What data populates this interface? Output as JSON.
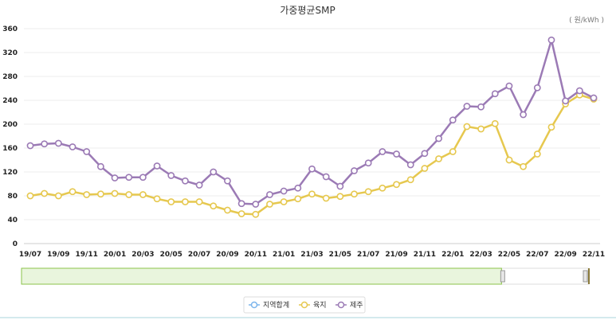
{
  "chart_data": {
    "type": "line",
    "title": "가중평균SMP",
    "unit_label": "( 원/kWh )",
    "ylim": [
      0,
      360
    ],
    "yticks": [
      "0",
      "40",
      "80",
      "120",
      "160",
      "200",
      "240",
      "280",
      "320",
      "360"
    ],
    "x": [
      "19/07",
      "19/08",
      "19/09",
      "19/10",
      "19/11",
      "19/12",
      "20/01",
      "20/02",
      "20/03",
      "20/04",
      "20/05",
      "20/06",
      "20/07",
      "20/08",
      "20/09",
      "20/10",
      "20/11",
      "20/12",
      "21/01",
      "21/02",
      "21/03",
      "21/04",
      "21/05",
      "21/06",
      "21/07",
      "21/08",
      "21/09",
      "21/10",
      "21/11",
      "21/12",
      "22/01",
      "22/02",
      "22/03",
      "22/04",
      "22/05",
      "22/06",
      "22/07",
      "22/08",
      "22/09",
      "22/10",
      "22/11"
    ],
    "x_tick_labels": [
      "19/07",
      "19/09",
      "19/11",
      "20/01",
      "20/03",
      "20/05",
      "20/07",
      "20/09",
      "20/11",
      "21/01",
      "21/03",
      "21/05",
      "21/07",
      "21/09",
      "21/11",
      "22/01",
      "22/03",
      "22/05",
      "22/07",
      "22/09",
      "22/11"
    ],
    "grid": true,
    "legend_position": "bottom",
    "series": [
      {
        "name": "지역합계",
        "color": "#7cb5ec",
        "values": [
          82,
          85,
          81,
          88,
          83,
          84,
          84,
          83,
          83,
          76,
          71,
          71,
          71,
          64,
          57,
          51,
          50,
          67,
          71,
          76,
          84,
          77,
          80,
          84,
          88,
          94,
          100,
          108,
          127,
          143,
          155,
          197,
          193,
          202,
          142,
          130,
          152,
          196,
          236,
          251,
          243
        ]
      },
      {
        "name": "육지",
        "color": "#e6c84f",
        "values": [
          80,
          84,
          80,
          87,
          82,
          83,
          84,
          82,
          82,
          75,
          70,
          70,
          70,
          63,
          56,
          50,
          49,
          66,
          70,
          75,
          83,
          76,
          79,
          83,
          87,
          93,
          99,
          107,
          126,
          142,
          154,
          196,
          192,
          201,
          140,
          129,
          150,
          195,
          234,
          249,
          242
        ]
      },
      {
        "name": "제주",
        "color": "#9b7ab5",
        "values": [
          164,
          167,
          168,
          162,
          154,
          129,
          110,
          111,
          111,
          130,
          114,
          105,
          98,
          120,
          105,
          67,
          66,
          82,
          88,
          93,
          125,
          112,
          96,
          122,
          135,
          154,
          150,
          132,
          151,
          176,
          207,
          230,
          229,
          251,
          264,
          216,
          261,
          341,
          239,
          256,
          244
        ]
      }
    ]
  },
  "navigator": {
    "selection_fraction": 0.85
  },
  "colors": {
    "grid": "#eeeeee",
    "axis": "#cccccc",
    "navigator_fill": "#e9f5dd",
    "navigator_border": "#8bc34a"
  }
}
